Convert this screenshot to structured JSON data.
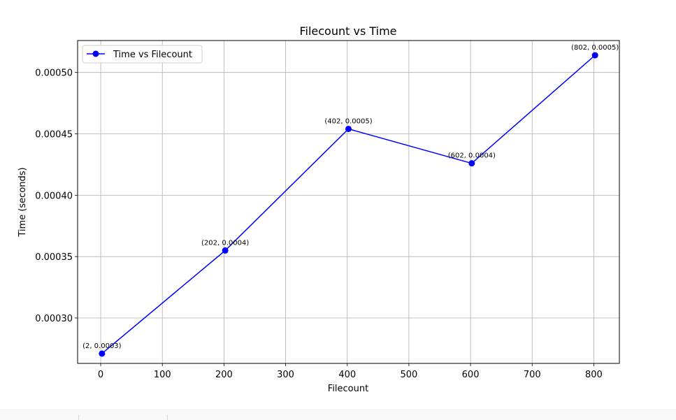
{
  "chart_data": {
    "type": "line",
    "title": "Filecount vs Time",
    "xlabel": "Filecount",
    "ylabel": "Time (seconds)",
    "x": [
      2,
      202,
      402,
      602,
      802
    ],
    "series": [
      {
        "name": "Time vs Filecount",
        "color": "#0000ff",
        "marker": "circle",
        "values": [
          0.000271,
          0.000355,
          0.000454,
          0.000426,
          0.000514
        ]
      }
    ],
    "point_labels": [
      "(2, 0.0003)",
      "(202, 0.0004)",
      "(402, 0.0005)",
      "(602, 0.0004)",
      "(802, 0.0005)"
    ],
    "xlim": [
      -37.5,
      841.5
    ],
    "ylim": [
      0.000263,
      0.000526
    ],
    "xticks": [
      0,
      100,
      200,
      300,
      400,
      500,
      600,
      700,
      800
    ],
    "xtick_labels": [
      "0",
      "100",
      "200",
      "300",
      "400",
      "500",
      "600",
      "700",
      "800"
    ],
    "yticks": [
      0.0003,
      0.00035,
      0.0004,
      0.00045,
      0.0005
    ],
    "ytick_labels": [
      "0.00030",
      "0.00035",
      "0.00040",
      "0.00045",
      "0.00050"
    ],
    "grid": true,
    "legend_position": "upper-left"
  }
}
